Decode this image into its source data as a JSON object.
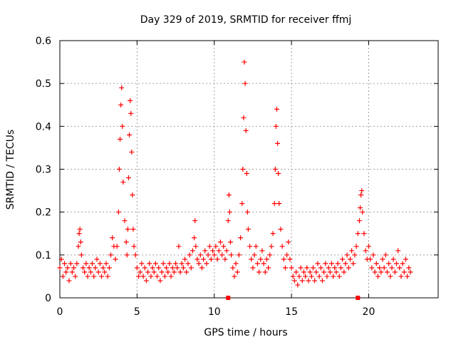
{
  "chart_data": {
    "type": "scatter",
    "title": "Day 329 of 2019, SRMTID for receiver ffmj",
    "xlabel": "GPS time / hours",
    "ylabel": "SRMTID / TECUs",
    "xlim": [
      0,
      24.5
    ],
    "ylim": [
      0,
      0.6
    ],
    "x_ticks": [
      0,
      5,
      10,
      15,
      20
    ],
    "x_tick_labels": [
      "0",
      "5",
      "10",
      "15",
      "20"
    ],
    "y_ticks": [
      0,
      0.1,
      0.2,
      0.3,
      0.4,
      0.5,
      0.6
    ],
    "y_tick_labels": [
      "0",
      "0.1",
      "0.2",
      "0.3",
      "0.4",
      "0.5",
      "0.6"
    ],
    "grid": true,
    "marker": "+",
    "series_color": "#ff0000",
    "series": [
      {
        "name": "SRMTID",
        "points": [
          [
            0.0,
            0.07
          ],
          [
            0.1,
            0.09
          ],
          [
            0.2,
            0.05
          ],
          [
            0.3,
            0.08
          ],
          [
            0.4,
            0.06
          ],
          [
            0.5,
            0.07
          ],
          [
            0.6,
            0.04
          ],
          [
            0.7,
            0.08
          ],
          [
            0.8,
            0.06
          ],
          [
            0.9,
            0.07
          ],
          [
            1.0,
            0.05
          ],
          [
            1.1,
            0.08
          ],
          [
            1.2,
            0.12
          ],
          [
            1.25,
            0.15
          ],
          [
            1.3,
            0.16
          ],
          [
            1.35,
            0.13
          ],
          [
            1.4,
            0.1
          ],
          [
            1.5,
            0.07
          ],
          [
            1.6,
            0.06
          ],
          [
            1.7,
            0.08
          ],
          [
            1.8,
            0.05
          ],
          [
            1.9,
            0.07
          ],
          [
            2.0,
            0.06
          ],
          [
            2.1,
            0.08
          ],
          [
            2.2,
            0.05
          ],
          [
            2.3,
            0.07
          ],
          [
            2.4,
            0.09
          ],
          [
            2.5,
            0.06
          ],
          [
            2.6,
            0.08
          ],
          [
            2.7,
            0.05
          ],
          [
            2.8,
            0.07
          ],
          [
            2.9,
            0.06
          ],
          [
            3.0,
            0.08
          ],
          [
            3.1,
            0.05
          ],
          [
            3.2,
            0.07
          ],
          [
            3.3,
            0.1
          ],
          [
            3.4,
            0.14
          ],
          [
            3.5,
            0.12
          ],
          [
            3.6,
            0.09
          ],
          [
            3.7,
            0.12
          ],
          [
            3.8,
            0.2
          ],
          [
            3.85,
            0.3
          ],
          [
            3.9,
            0.37
          ],
          [
            3.95,
            0.45
          ],
          [
            4.0,
            0.49
          ],
          [
            4.05,
            0.4
          ],
          [
            4.1,
            0.27
          ],
          [
            4.2,
            0.18
          ],
          [
            4.3,
            0.13
          ],
          [
            4.35,
            0.1
          ],
          [
            4.4,
            0.16
          ],
          [
            4.45,
            0.28
          ],
          [
            4.5,
            0.38
          ],
          [
            4.55,
            0.46
          ],
          [
            4.6,
            0.43
          ],
          [
            4.65,
            0.34
          ],
          [
            4.7,
            0.24
          ],
          [
            4.75,
            0.16
          ],
          [
            4.8,
            0.12
          ],
          [
            4.9,
            0.1
          ],
          [
            5.0,
            0.07
          ],
          [
            5.1,
            0.05
          ],
          [
            5.2,
            0.06
          ],
          [
            5.3,
            0.08
          ],
          [
            5.4,
            0.05
          ],
          [
            5.5,
            0.07
          ],
          [
            5.6,
            0.04
          ],
          [
            5.7,
            0.06
          ],
          [
            5.8,
            0.08
          ],
          [
            5.9,
            0.05
          ],
          [
            6.0,
            0.07
          ],
          [
            6.1,
            0.06
          ],
          [
            6.2,
            0.08
          ],
          [
            6.3,
            0.05
          ],
          [
            6.4,
            0.07
          ],
          [
            6.5,
            0.04
          ],
          [
            6.6,
            0.06
          ],
          [
            6.7,
            0.08
          ],
          [
            6.8,
            0.05
          ],
          [
            6.9,
            0.07
          ],
          [
            7.0,
            0.06
          ],
          [
            7.1,
            0.08
          ],
          [
            7.2,
            0.05
          ],
          [
            7.3,
            0.07
          ],
          [
            7.4,
            0.06
          ],
          [
            7.5,
            0.08
          ],
          [
            7.6,
            0.07
          ],
          [
            7.7,
            0.12
          ],
          [
            7.8,
            0.06
          ],
          [
            7.9,
            0.08
          ],
          [
            8.0,
            0.07
          ],
          [
            8.1,
            0.09
          ],
          [
            8.2,
            0.06
          ],
          [
            8.3,
            0.08
          ],
          [
            8.4,
            0.1
          ],
          [
            8.5,
            0.07
          ],
          [
            8.6,
            0.11
          ],
          [
            8.7,
            0.14
          ],
          [
            8.75,
            0.18
          ],
          [
            8.8,
            0.12
          ],
          [
            8.9,
            0.09
          ],
          [
            9.0,
            0.08
          ],
          [
            9.1,
            0.1
          ],
          [
            9.2,
            0.07
          ],
          [
            9.3,
            0.09
          ],
          [
            9.4,
            0.11
          ],
          [
            9.5,
            0.08
          ],
          [
            9.6,
            0.1
          ],
          [
            9.7,
            0.12
          ],
          [
            9.8,
            0.09
          ],
          [
            9.9,
            0.11
          ],
          [
            10.0,
            0.1
          ],
          [
            10.1,
            0.12
          ],
          [
            10.2,
            0.09
          ],
          [
            10.3,
            0.11
          ],
          [
            10.4,
            0.13
          ],
          [
            10.5,
            0.1
          ],
          [
            10.6,
            0.12
          ],
          [
            10.7,
            0.09
          ],
          [
            10.8,
            0.11
          ],
          [
            10.9,
            0.18
          ],
          [
            10.95,
            0.24
          ],
          [
            11.0,
            0.2
          ],
          [
            11.05,
            0.13
          ],
          [
            11.1,
            0.1
          ],
          [
            11.2,
            0.07
          ],
          [
            11.3,
            0.05
          ],
          [
            11.4,
            0.08
          ],
          [
            11.5,
            0.06
          ],
          [
            11.6,
            0.1
          ],
          [
            11.7,
            0.14
          ],
          [
            11.8,
            0.22
          ],
          [
            11.85,
            0.3
          ],
          [
            11.9,
            0.42
          ],
          [
            11.95,
            0.55
          ],
          [
            12.0,
            0.5
          ],
          [
            12.05,
            0.39
          ],
          [
            12.1,
            0.29
          ],
          [
            12.15,
            0.2
          ],
          [
            12.2,
            0.16
          ],
          [
            12.3,
            0.12
          ],
          [
            12.4,
            0.09
          ],
          [
            12.5,
            0.07
          ],
          [
            12.6,
            0.1
          ],
          [
            12.7,
            0.12
          ],
          [
            12.8,
            0.08
          ],
          [
            12.9,
            0.06
          ],
          [
            13.0,
            0.09
          ],
          [
            13.1,
            0.11
          ],
          [
            13.2,
            0.08
          ],
          [
            13.3,
            0.06
          ],
          [
            13.4,
            0.09
          ],
          [
            13.5,
            0.07
          ],
          [
            13.6,
            0.1
          ],
          [
            13.7,
            0.12
          ],
          [
            13.8,
            0.15
          ],
          [
            13.9,
            0.22
          ],
          [
            13.95,
            0.3
          ],
          [
            14.0,
            0.4
          ],
          [
            14.05,
            0.44
          ],
          [
            14.1,
            0.36
          ],
          [
            14.15,
            0.29
          ],
          [
            14.2,
            0.22
          ],
          [
            14.3,
            0.16
          ],
          [
            14.4,
            0.12
          ],
          [
            14.5,
            0.09
          ],
          [
            14.6,
            0.07
          ],
          [
            14.7,
            0.1
          ],
          [
            14.8,
            0.13
          ],
          [
            14.9,
            0.09
          ],
          [
            15.0,
            0.07
          ],
          [
            15.1,
            0.05
          ],
          [
            15.2,
            0.04
          ],
          [
            15.3,
            0.06
          ],
          [
            15.4,
            0.03
          ],
          [
            15.5,
            0.05
          ],
          [
            15.6,
            0.07
          ],
          [
            15.7,
            0.04
          ],
          [
            15.8,
            0.06
          ],
          [
            15.9,
            0.05
          ],
          [
            16.0,
            0.07
          ],
          [
            16.1,
            0.04
          ],
          [
            16.2,
            0.06
          ],
          [
            16.3,
            0.05
          ],
          [
            16.4,
            0.07
          ],
          [
            16.5,
            0.04
          ],
          [
            16.6,
            0.06
          ],
          [
            16.7,
            0.08
          ],
          [
            16.8,
            0.05
          ],
          [
            16.9,
            0.07
          ],
          [
            17.0,
            0.04
          ],
          [
            17.1,
            0.06
          ],
          [
            17.2,
            0.08
          ],
          [
            17.3,
            0.05
          ],
          [
            17.4,
            0.07
          ],
          [
            17.5,
            0.06
          ],
          [
            17.6,
            0.08
          ],
          [
            17.7,
            0.05
          ],
          [
            17.8,
            0.07
          ],
          [
            17.9,
            0.06
          ],
          [
            18.0,
            0.08
          ],
          [
            18.1,
            0.05
          ],
          [
            18.2,
            0.07
          ],
          [
            18.3,
            0.09
          ],
          [
            18.4,
            0.06
          ],
          [
            18.5,
            0.08
          ],
          [
            18.6,
            0.1
          ],
          [
            18.7,
            0.07
          ],
          [
            18.8,
            0.09
          ],
          [
            18.9,
            0.11
          ],
          [
            19.0,
            0.08
          ],
          [
            19.1,
            0.1
          ],
          [
            19.2,
            0.12
          ],
          [
            19.3,
            0.15
          ],
          [
            19.4,
            0.18
          ],
          [
            19.45,
            0.21
          ],
          [
            19.5,
            0.24
          ],
          [
            19.55,
            0.25
          ],
          [
            19.6,
            0.2
          ],
          [
            19.7,
            0.15
          ],
          [
            19.8,
            0.11
          ],
          [
            19.9,
            0.09
          ],
          [
            20.0,
            0.12
          ],
          [
            20.1,
            0.09
          ],
          [
            20.2,
            0.07
          ],
          [
            20.3,
            0.1
          ],
          [
            20.4,
            0.06
          ],
          [
            20.5,
            0.08
          ],
          [
            20.6,
            0.05
          ],
          [
            20.7,
            0.07
          ],
          [
            20.8,
            0.06
          ],
          [
            20.9,
            0.09
          ],
          [
            21.0,
            0.07
          ],
          [
            21.1,
            0.1
          ],
          [
            21.2,
            0.06
          ],
          [
            21.3,
            0.08
          ],
          [
            21.4,
            0.05
          ],
          [
            21.5,
            0.07
          ],
          [
            21.6,
            0.09
          ],
          [
            21.7,
            0.06
          ],
          [
            21.8,
            0.08
          ],
          [
            21.9,
            0.11
          ],
          [
            22.0,
            0.07
          ],
          [
            22.1,
            0.05
          ],
          [
            22.2,
            0.08
          ],
          [
            22.3,
            0.06
          ],
          [
            22.4,
            0.09
          ],
          [
            22.5,
            0.05
          ],
          [
            22.6,
            0.07
          ],
          [
            22.7,
            0.06
          ]
        ]
      }
    ],
    "gap_markers_x": [
      10.9,
      19.3
    ]
  }
}
